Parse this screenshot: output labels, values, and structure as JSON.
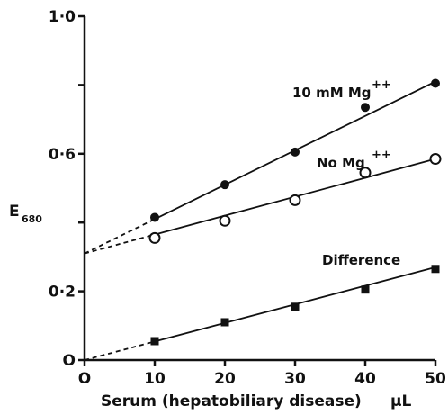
{
  "chart_data": {
    "type": "line",
    "title": "",
    "xlabel": "Serum (hepatobiliary disease)",
    "xunit": "μL",
    "ylabel": "E",
    "ylabel_subscript": "680",
    "xlim": [
      0,
      50
    ],
    "ylim": [
      0,
      1.0
    ],
    "x_ticks": [
      0,
      10,
      20,
      30,
      40,
      50
    ],
    "x_tick_labels": [
      "O",
      "10",
      "20",
      "30",
      "40",
      "50"
    ],
    "y_ticks": [
      0,
      0.2,
      0.4,
      0.6,
      0.8,
      1.0
    ],
    "y_tick_labels": [
      "O",
      "0·2",
      "",
      "0·6",
      "",
      "1·0"
    ],
    "grid": false,
    "legend": "none",
    "series": [
      {
        "name": "10 mM Mg++",
        "label_text": "10 mM Mg",
        "label_superscript": "++",
        "marker": "filled-circle",
        "x": [
          10,
          20,
          30,
          40,
          50
        ],
        "values": [
          0.415,
          0.51,
          0.605,
          0.735,
          0.805
        ],
        "fit": {
          "from": [
            0,
            0.31
          ],
          "to": [
            50,
            0.81
          ],
          "dashed_until": 10
        }
      },
      {
        "name": "No Mg++",
        "label_text": "No Mg",
        "label_superscript": "++",
        "marker": "open-circle",
        "x": [
          10,
          20,
          30,
          40,
          50
        ],
        "values": [
          0.355,
          0.405,
          0.465,
          0.545,
          0.585
        ],
        "fit": {
          "from": [
            0,
            0.31
          ],
          "to": [
            50,
            0.585
          ],
          "dashed_until": 10
        }
      },
      {
        "name": "Difference",
        "label_text": "Difference",
        "label_superscript": "",
        "marker": "filled-square",
        "x": [
          10,
          20,
          30,
          40,
          50
        ],
        "values": [
          0.055,
          0.11,
          0.155,
          0.205,
          0.265
        ],
        "fit": {
          "from": [
            0,
            0.0
          ],
          "to": [
            50,
            0.27
          ],
          "dashed_until": 10
        }
      }
    ]
  }
}
